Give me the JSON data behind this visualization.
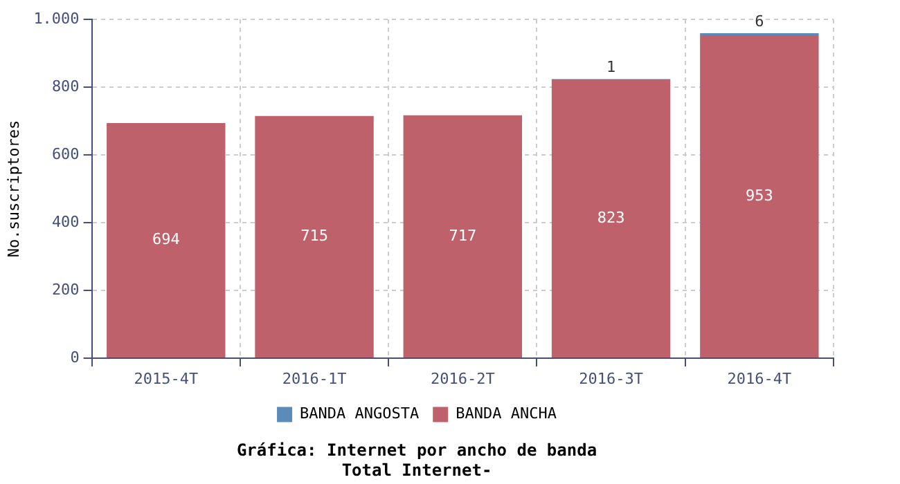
{
  "chart_data": {
    "type": "bar",
    "title": "Gráfica: Internet por ancho de banda",
    "subtitle": "Total Internet-",
    "ylabel": "No.suscriptores",
    "categories": [
      "2015-4T",
      "2016-1T",
      "2016-2T",
      "2016-3T",
      "2016-4T"
    ],
    "stacked": true,
    "series": [
      {
        "name": "BANDA ANCHA",
        "color": "#bf616b",
        "values": [
          694,
          715,
          717,
          823,
          953
        ],
        "value_labels": [
          "694",
          "715",
          "717",
          "823",
          "953"
        ]
      },
      {
        "name": "BANDA ANGOSTA",
        "color": "#5b8bb8",
        "values": [
          0,
          0,
          0,
          1,
          6
        ],
        "value_labels": [
          null,
          null,
          null,
          "1",
          "6"
        ]
      }
    ],
    "ylim": [
      0,
      1000
    ],
    "yticks": [
      0,
      200,
      400,
      600,
      800,
      {
        "value": 1000,
        "label": "1.000"
      }
    ],
    "grid": true,
    "legend": "bottom"
  }
}
